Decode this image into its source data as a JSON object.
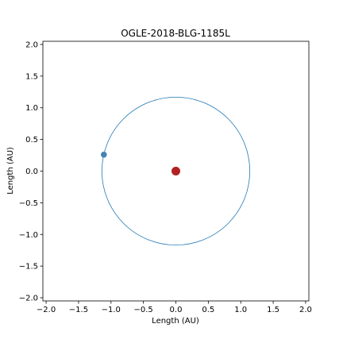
{
  "chart_data": {
    "type": "scatter",
    "title": "OGLE-2018-BLG-1185L",
    "xlabel": "Length (AU)",
    "ylabel": "Length (AU)",
    "xlim": [
      -2.05,
      2.05
    ],
    "ylim": [
      -2.05,
      2.05
    ],
    "x_ticks": [
      -2.0,
      -1.5,
      -1.0,
      -0.5,
      0.0,
      0.5,
      1.0,
      1.5,
      2.0
    ],
    "x_tick_labels": [
      "−2.0",
      "−1.5",
      "−1.0",
      "−0.5",
      "0.0",
      "0.5",
      "1.0",
      "1.5",
      "2.0"
    ],
    "y_ticks": [
      -2.0,
      -1.5,
      -1.0,
      -0.5,
      0.0,
      0.5,
      1.0,
      1.5,
      2.0
    ],
    "y_tick_labels": [
      "−2.0",
      "−1.5",
      "−1.0",
      "−0.5",
      "0.0",
      "0.5",
      "1.0",
      "1.5",
      "2.0"
    ],
    "grid": false,
    "orbit": {
      "center_x": 0.0,
      "center_y": 0.0,
      "radius": 1.14,
      "color": "#1f77b4"
    },
    "star": {
      "x": 0.0,
      "y": 0.0,
      "color": "#b22222"
    },
    "planet": {
      "x": -1.11,
      "y": 0.26,
      "color": "#4682b4"
    }
  }
}
